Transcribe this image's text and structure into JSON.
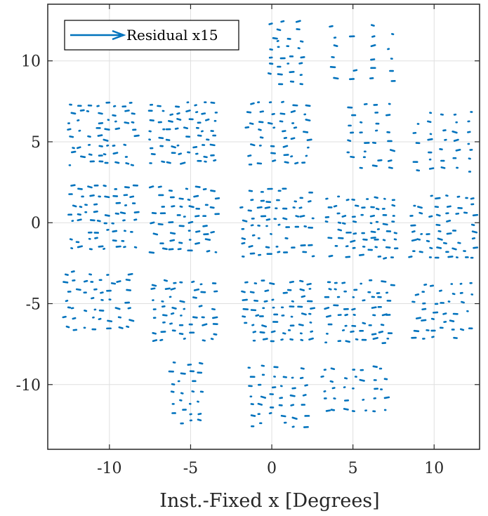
{
  "chart_data": {
    "type": "quiver",
    "xlabel": "Inst.-Fixed x [Degrees]",
    "ylabel": "",
    "xlim": [
      -13.8,
      12.8
    ],
    "ylim": [
      -14,
      13.5
    ],
    "xticks": [
      -10,
      -5,
      0,
      5,
      10
    ],
    "yticks": [
      -10,
      -5,
      0,
      5,
      10
    ],
    "xtick_labels": [
      "-10",
      "-5",
      "0",
      "5",
      "10"
    ],
    "ytick_labels": [
      "-10",
      "-5",
      "0",
      "5",
      "10"
    ],
    "grid": true,
    "legend": {
      "label": "Residual x15",
      "placement": "top-left"
    },
    "series_color": "#0072BD",
    "clusters": [
      {
        "center": [
          0.8,
          10.5
        ],
        "extent": [
          1.7,
          3.7
        ],
        "rows": 8,
        "cols": 4
      },
      {
        "center": [
          5.5,
          10.5
        ],
        "extent": [
          3.6,
          3.4
        ],
        "rows": 6,
        "cols": 4
      },
      {
        "center": [
          -10.5,
          5.5
        ],
        "extent": [
          3.8,
          3.6
        ],
        "rows": 8,
        "cols": 8
      },
      {
        "center": [
          -5.5,
          5.5
        ],
        "extent": [
          3.8,
          3.6
        ],
        "rows": 8,
        "cols": 8
      },
      {
        "center": [
          0.3,
          5.5
        ],
        "extent": [
          3.5,
          3.6
        ],
        "rows": 8,
        "cols": 6
      },
      {
        "center": [
          6.0,
          5.3
        ],
        "extent": [
          2.4,
          3.8
        ],
        "rows": 8,
        "cols": 4
      },
      {
        "center": [
          10.5,
          5.0
        ],
        "extent": [
          3.2,
          3.4
        ],
        "rows": 7,
        "cols": 5
      },
      {
        "center": [
          -10.5,
          0.3
        ],
        "extent": [
          3.8,
          3.8
        ],
        "rows": 8,
        "cols": 8
      },
      {
        "center": [
          -5.5,
          0.2
        ],
        "extent": [
          3.8,
          3.8
        ],
        "rows": 8,
        "cols": 8
      },
      {
        "center": [
          0.3,
          0.0
        ],
        "extent": [
          4.2,
          3.9
        ],
        "rows": 8,
        "cols": 9
      },
      {
        "center": [
          5.5,
          -0.3
        ],
        "extent": [
          4.0,
          3.6
        ],
        "rows": 8,
        "cols": 9
      },
      {
        "center": [
          10.5,
          -0.3
        ],
        "extent": [
          3.8,
          3.8
        ],
        "rows": 8,
        "cols": 8
      },
      {
        "center": [
          -10.8,
          -4.8
        ],
        "extent": [
          3.8,
          3.4
        ],
        "rows": 7,
        "cols": 8
      },
      {
        "center": [
          -5.5,
          -5.5
        ],
        "extent": [
          3.6,
          3.6
        ],
        "rows": 8,
        "cols": 7
      },
      {
        "center": [
          0.3,
          -5.5
        ],
        "extent": [
          4.0,
          3.6
        ],
        "rows": 8,
        "cols": 8
      },
      {
        "center": [
          5.3,
          -5.5
        ],
        "extent": [
          3.8,
          3.6
        ],
        "rows": 8,
        "cols": 8
      },
      {
        "center": [
          10.5,
          -5.5
        ],
        "extent": [
          3.4,
          3.4
        ],
        "rows": 7,
        "cols": 7
      },
      {
        "center": [
          -5.3,
          -10.5
        ],
        "extent": [
          1.8,
          3.6
        ],
        "rows": 7,
        "cols": 4
      },
      {
        "center": [
          0.3,
          -10.7
        ],
        "extent": [
          3.2,
          3.6
        ],
        "rows": 7,
        "cols": 6
      },
      {
        "center": [
          5.0,
          -10.3
        ],
        "extent": [
          3.6,
          2.6
        ],
        "rows": 5,
        "cols": 7
      }
    ]
  }
}
